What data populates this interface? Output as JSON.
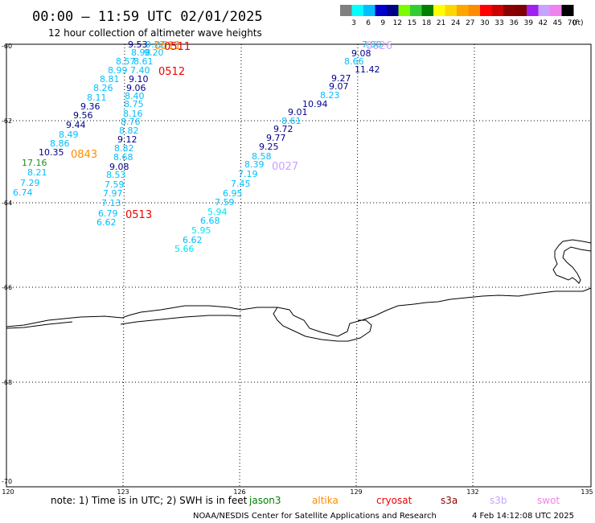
{
  "header": {
    "title": "00:00 – 11:59 UTC 02/01/2025",
    "subtitle": "12 hour collection of altimeter wave heights"
  },
  "scale": {
    "values": [
      "3",
      "6",
      "9",
      "12",
      "15",
      "18",
      "21",
      "24",
      "27",
      "30",
      "33",
      "36",
      "39",
      "42",
      "45",
      "70"
    ],
    "unit": "(ft)",
    "colors": [
      "#7f7f7f",
      "#00ffff",
      "#00bfff",
      "#0000cd",
      "#00008b",
      "#7cfc00",
      "#32cd32",
      "#008000",
      "#ffff00",
      "#ffd700",
      "#ffa500",
      "#ff8c00",
      "#ff0000",
      "#cd0000",
      "#8b0000",
      "#800000",
      "#a020f0",
      "#c8a2ff",
      "#ee82ee",
      "#000000"
    ]
  },
  "axes": {
    "lat_labels": [
      "-60",
      "-62",
      "-64",
      "-66",
      "-68",
      "-70"
    ],
    "lon_labels": [
      "120",
      "123",
      "126",
      "129",
      "132",
      "135"
    ]
  },
  "tracks": [
    {
      "points": [
        {
          "v": "9.53",
          "c": "#00008b"
        },
        {
          "v": "9.22",
          "c": "#00bfff"
        },
        {
          "v": "8.98",
          "c": "#00bfff"
        },
        {
          "v": "9.20",
          "c": "#00bfff"
        },
        {
          "v": "8.57",
          "c": "#00bfff"
        },
        {
          "v": "8.61",
          "c": "#00bfff"
        },
        {
          "v": "8.99",
          "c": "#00bfff"
        },
        {
          "v": "7.40",
          "c": "#00bfff"
        },
        {
          "v": "8.81",
          "c": "#00bfff"
        },
        {
          "v": "9.10",
          "c": "#00008b"
        },
        {
          "v": "8.26",
          "c": "#00bfff"
        },
        {
          "v": "9.06",
          "c": "#00008b"
        },
        {
          "v": "8.11",
          "c": "#00bfff"
        },
        {
          "v": "8.40",
          "c": "#00bfff"
        },
        {
          "v": "9.36",
          "c": "#00008b"
        },
        {
          "v": "8.75",
          "c": "#00bfff"
        },
        {
          "v": "9.56",
          "c": "#00008b"
        },
        {
          "v": "8.16",
          "c": "#00bfff"
        },
        {
          "v": "9.44",
          "c": "#00008b"
        },
        {
          "v": "8.76",
          "c": "#00bfff"
        },
        {
          "v": "8.49",
          "c": "#00bfff"
        },
        {
          "v": "8.82",
          "c": "#00bfff"
        },
        {
          "v": "8.86",
          "c": "#00bfff"
        },
        {
          "v": "9.12",
          "c": "#00008b"
        },
        {
          "v": "10.35",
          "c": "#00008b"
        },
        {
          "v": "8.82",
          "c": "#00bfff"
        },
        {
          "v": "8.68",
          "c": "#00bfff"
        },
        {
          "v": "17.16",
          "c": "#228b22"
        },
        {
          "v": "9.08",
          "c": "#00008b"
        },
        {
          "v": "8.21",
          "c": "#00bfff"
        },
        {
          "v": "8.53",
          "c": "#00bfff"
        },
        {
          "v": "7.29",
          "c": "#00bfff"
        },
        {
          "v": "7.59",
          "c": "#00bfff"
        },
        {
          "v": "6.74",
          "c": "#00bfff"
        },
        {
          "v": "7.97",
          "c": "#00bfff"
        },
        {
          "v": "7.13",
          "c": "#00bfff"
        },
        {
          "v": "6.79",
          "c": "#00bfff"
        },
        {
          "v": "6.62",
          "c": "#00bfff"
        }
      ]
    },
    {
      "points": [
        {
          "v": "7.88",
          "c": "#00bfff"
        },
        {
          "v": "9.08",
          "c": "#00008b"
        },
        {
          "v": "8.66",
          "c": "#00bfff"
        },
        {
          "v": "11.42",
          "c": "#00008b"
        },
        {
          "v": "9.27",
          "c": "#00008b"
        },
        {
          "v": "9.07",
          "c": "#00008b"
        },
        {
          "v": "8.23",
          "c": "#00bfff"
        },
        {
          "v": "10.94",
          "c": "#00008b"
        },
        {
          "v": "9.01",
          "c": "#00008b"
        },
        {
          "v": "8.61",
          "c": "#00bfff"
        },
        {
          "v": "9.72",
          "c": "#00008b"
        },
        {
          "v": "9.77",
          "c": "#00008b"
        },
        {
          "v": "9.25",
          "c": "#00008b"
        },
        {
          "v": "8.58",
          "c": "#00bfff"
        },
        {
          "v": "8.39",
          "c": "#00bfff"
        },
        {
          "v": "7.19",
          "c": "#00bfff"
        },
        {
          "v": "7.45",
          "c": "#00bfff"
        },
        {
          "v": "6.95",
          "c": "#00bfff"
        },
        {
          "v": "7.59",
          "c": "#00bfff"
        },
        {
          "v": "5.94",
          "c": "#00e5ee"
        },
        {
          "v": "6.68",
          "c": "#00bfff"
        },
        {
          "v": "5.95",
          "c": "#00e5ee"
        },
        {
          "v": "6.62",
          "c": "#00bfff"
        },
        {
          "v": "5.66",
          "c": "#00e5ee"
        }
      ]
    }
  ],
  "time_labels": [
    {
      "text": "0843",
      "color": "#ff8c00"
    },
    {
      "text": "0511",
      "color": "#ff8c00"
    },
    {
      "text": "0511",
      "color": "#ee0000"
    },
    {
      "text": "0512",
      "color": "#ee0000"
    },
    {
      "text": "0513",
      "color": "#ee0000"
    },
    {
      "text": "0027",
      "color": "#c8a2ff"
    },
    {
      "text": "0026",
      "color": "#c8a2ff"
    }
  ],
  "footer": {
    "note": "note: 1) Time is in UTC; 2) SWH is in feet",
    "missions": [
      {
        "name": "jason3",
        "color": "#008000"
      },
      {
        "name": "altika",
        "color": "#ff8c00"
      },
      {
        "name": "cryosat",
        "color": "#ee0000"
      },
      {
        "name": "s3a",
        "color": "#8b0000"
      },
      {
        "name": "s3b",
        "color": "#c8a2ff"
      },
      {
        "name": "swot",
        "color": "#ee82ee"
      }
    ],
    "credit": "NOAA/NESDIS Center for Satellite Applications and Research",
    "timestamp": "4 Feb 14:12:08 UTC 2025"
  }
}
